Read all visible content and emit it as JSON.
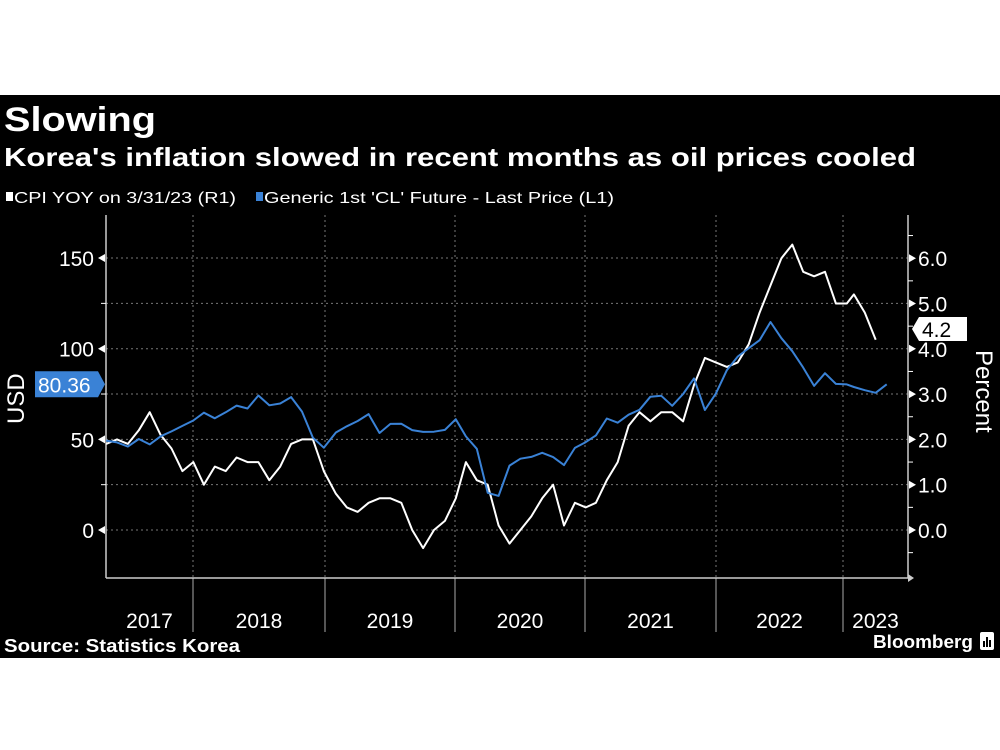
{
  "title": "Slowing",
  "subtitle": "Korea's inflation slowed in recent months as oil prices cooled",
  "source": "Source: Statistics Korea",
  "brand": "Bloomberg",
  "colors": {
    "background": "#000000",
    "cpi": "#ffffff",
    "oil": "#3a82d6",
    "grid": "#777777"
  },
  "chart_data": {
    "type": "line",
    "title": "Slowing",
    "legend_placement": "top-left",
    "grid": true,
    "x_tick_labels": [
      "2017",
      "2018",
      "2019",
      "2020",
      "2021",
      "2022",
      "2023"
    ],
    "left_axis": {
      "label": "USD",
      "range": [
        -25,
        175
      ],
      "ticks": [
        "150",
        "100",
        "50",
        "0"
      ]
    },
    "right_axis": {
      "label": "Percent",
      "range": [
        -1.0,
        6.8
      ],
      "ticks": [
        "6.0",
        "5.0",
        "4.0",
        "3.0",
        "2.0",
        "1.0",
        "0.0"
      ]
    },
    "x": [
      "2017-04",
      "2017-05",
      "2017-06",
      "2017-07",
      "2017-08",
      "2017-09",
      "2017-10",
      "2017-11",
      "2017-12",
      "2018-01",
      "2018-02",
      "2018-03",
      "2018-04",
      "2018-05",
      "2018-06",
      "2018-07",
      "2018-08",
      "2018-09",
      "2018-10",
      "2018-11",
      "2018-12",
      "2019-01",
      "2019-02",
      "2019-03",
      "2019-04",
      "2019-05",
      "2019-06",
      "2019-07",
      "2019-08",
      "2019-09",
      "2019-10",
      "2019-11",
      "2019-12",
      "2020-01",
      "2020-02",
      "2020-03",
      "2020-04",
      "2020-05",
      "2020-06",
      "2020-07",
      "2020-08",
      "2020-09",
      "2020-10",
      "2020-11",
      "2020-12",
      "2021-01",
      "2021-02",
      "2021-03",
      "2021-04",
      "2021-05",
      "2021-06",
      "2021-07",
      "2021-08",
      "2021-09",
      "2021-10",
      "2021-11",
      "2021-12",
      "2022-01",
      "2022-02",
      "2022-03",
      "2022-04",
      "2022-05",
      "2022-06",
      "2022-07",
      "2022-08",
      "2022-09",
      "2022-10",
      "2022-11",
      "2022-12",
      "2023-01",
      "2023-02",
      "2023-03",
      "2023-04"
    ],
    "series": [
      {
        "name": "CPI YOY on 3/31/23 (R1)",
        "axis": "right",
        "last_value_label": "4.2",
        "values": [
          1.9,
          2.0,
          1.9,
          2.2,
          2.6,
          2.1,
          1.8,
          1.3,
          1.5,
          1.0,
          1.4,
          1.3,
          1.6,
          1.5,
          1.5,
          1.1,
          1.4,
          1.9,
          2.0,
          2.0,
          1.3,
          0.8,
          0.5,
          0.4,
          0.6,
          0.7,
          0.7,
          0.6,
          0.0,
          -0.4,
          0.0,
          0.2,
          0.7,
          1.5,
          1.1,
          1.0,
          0.1,
          -0.3,
          0.0,
          0.3,
          0.7,
          1.0,
          0.1,
          0.6,
          0.5,
          0.6,
          1.1,
          1.5,
          2.3,
          2.6,
          2.4,
          2.6,
          2.6,
          2.4,
          3.2,
          3.8,
          3.7,
          3.6,
          3.7,
          4.1,
          4.8,
          5.4,
          6.0,
          6.3,
          5.7,
          5.6,
          5.7,
          5.0,
          5.0,
          5.2,
          4.8,
          4.2,
          null
        ]
      },
      {
        "name": "Generic 1st 'CL' Future - Last Price (L1)",
        "axis": "left",
        "last_value_label": "80.36",
        "values": [
          49.3,
          48.3,
          46.0,
          50.2,
          47.2,
          51.7,
          54.4,
          57.4,
          60.4,
          64.7,
          61.6,
          64.9,
          68.6,
          67.0,
          74.2,
          68.8,
          69.8,
          73.3,
          65.3,
          50.9,
          45.4,
          53.8,
          57.2,
          60.1,
          63.9,
          53.5,
          58.5,
          58.6,
          55.1,
          54.1,
          54.2,
          55.2,
          61.1,
          51.6,
          44.8,
          20.5,
          18.8,
          35.5,
          39.3,
          40.3,
          42.6,
          40.2,
          35.8,
          45.3,
          48.5,
          52.2,
          61.5,
          59.2,
          63.6,
          66.3,
          73.5,
          74.0,
          68.5,
          75.0,
          83.6,
          66.2,
          75.2,
          88.2,
          95.7,
          100.3,
          104.7,
          114.7,
          105.8,
          98.6,
          89.6,
          79.5,
          86.5,
          80.6,
          80.3,
          78.9,
          77.1,
          75.7,
          80.36
        ]
      }
    ]
  }
}
